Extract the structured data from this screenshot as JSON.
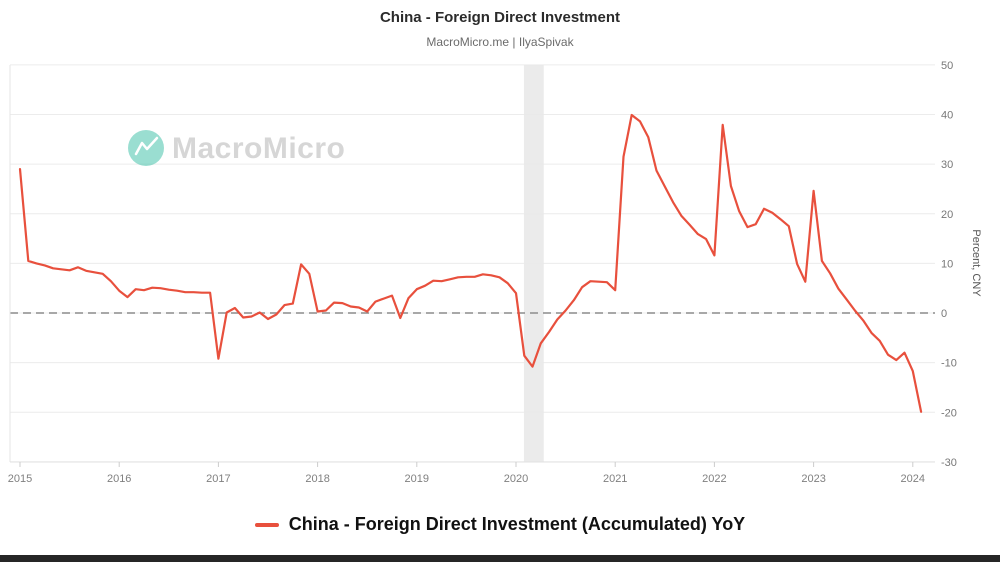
{
  "page": {
    "watermark": "MacroMicro",
    "bottom_bar_color": "#262626"
  },
  "chart_data": {
    "type": "line",
    "title": "China - Foreign Direct Investment",
    "subtitle": "MacroMicro.me | IlyaSpivak",
    "ylabel_right": "Percent, CNY",
    "ylim": [
      -30,
      50
    ],
    "yticks": [
      50,
      40,
      30,
      20,
      10,
      0,
      -10,
      -20,
      -30
    ],
    "xticks": [
      2015,
      2016,
      2017,
      2018,
      2019,
      2020,
      2021,
      2022,
      2023,
      2024
    ],
    "x_range": [
      2014.9,
      2024.22
    ],
    "grid": "horizontal",
    "zero_line": {
      "style": "dashed",
      "color": "#8c8c8c",
      "y": 0
    },
    "shaded_region": {
      "x_start": 2020.08,
      "x_end": 2020.28,
      "color": "#e9e9e9"
    },
    "legend_position": "bottom",
    "series": [
      {
        "name": "China - Foreign Direct Investment (Accumulated) YoY",
        "color": "#e8503d",
        "points": [
          [
            "2015-01",
            29.0
          ],
          [
            "2015-02",
            10.5
          ],
          [
            "2015-03",
            10.0
          ],
          [
            "2015-04",
            9.6
          ],
          [
            "2015-05",
            9.0
          ],
          [
            "2015-06",
            8.8
          ],
          [
            "2015-07",
            8.6
          ],
          [
            "2015-08",
            9.2
          ],
          [
            "2015-09",
            8.5
          ],
          [
            "2015-10",
            8.2
          ],
          [
            "2015-11",
            7.9
          ],
          [
            "2015-12",
            6.4
          ],
          [
            "2016-01",
            4.5
          ],
          [
            "2016-02",
            3.2
          ],
          [
            "2016-03",
            4.8
          ],
          [
            "2016-04",
            4.6
          ],
          [
            "2016-05",
            5.1
          ],
          [
            "2016-06",
            5.0
          ],
          [
            "2016-07",
            4.7
          ],
          [
            "2016-08",
            4.5
          ],
          [
            "2016-09",
            4.2
          ],
          [
            "2016-10",
            4.2
          ],
          [
            "2016-11",
            4.1
          ],
          [
            "2016-12",
            4.1
          ],
          [
            "2017-01",
            -9.2
          ],
          [
            "2017-02",
            0.1
          ],
          [
            "2017-03",
            1.0
          ],
          [
            "2017-04",
            -0.9
          ],
          [
            "2017-05",
            -0.7
          ],
          [
            "2017-06",
            0.1
          ],
          [
            "2017-07",
            -1.2
          ],
          [
            "2017-08",
            -0.3
          ],
          [
            "2017-09",
            1.6
          ],
          [
            "2017-10",
            1.9
          ],
          [
            "2017-11",
            9.8
          ],
          [
            "2017-12",
            7.9
          ],
          [
            "2018-01",
            0.3
          ],
          [
            "2018-02",
            0.5
          ],
          [
            "2018-03",
            2.1
          ],
          [
            "2018-04",
            2.0
          ],
          [
            "2018-05",
            1.3
          ],
          [
            "2018-06",
            1.1
          ],
          [
            "2018-07",
            0.3
          ],
          [
            "2018-08",
            2.3
          ],
          [
            "2018-09",
            2.9
          ],
          [
            "2018-10",
            3.5
          ],
          [
            "2018-11",
            -1.0
          ],
          [
            "2018-12",
            3.0
          ],
          [
            "2019-01",
            4.8
          ],
          [
            "2019-02",
            5.5
          ],
          [
            "2019-03",
            6.5
          ],
          [
            "2019-04",
            6.4
          ],
          [
            "2019-05",
            6.8
          ],
          [
            "2019-06",
            7.2
          ],
          [
            "2019-07",
            7.3
          ],
          [
            "2019-08",
            7.3
          ],
          [
            "2019-09",
            7.8
          ],
          [
            "2019-10",
            7.6
          ],
          [
            "2019-11",
            7.2
          ],
          [
            "2019-12",
            6.0
          ],
          [
            "2020-01",
            4.0
          ],
          [
            "2020-02",
            -8.6
          ],
          [
            "2020-03",
            -10.8
          ],
          [
            "2020-04",
            -6.1
          ],
          [
            "2020-05",
            -3.8
          ],
          [
            "2020-06",
            -1.3
          ],
          [
            "2020-07",
            0.5
          ],
          [
            "2020-08",
            2.6
          ],
          [
            "2020-09",
            5.2
          ],
          [
            "2020-10",
            6.4
          ],
          [
            "2020-11",
            6.3
          ],
          [
            "2020-12",
            6.2
          ],
          [
            "2021-01",
            4.6
          ],
          [
            "2021-02",
            31.5
          ],
          [
            "2021-03",
            39.9
          ],
          [
            "2021-04",
            38.6
          ],
          [
            "2021-05",
            35.4
          ],
          [
            "2021-06",
            28.7
          ],
          [
            "2021-07",
            25.5
          ],
          [
            "2021-08",
            22.3
          ],
          [
            "2021-09",
            19.6
          ],
          [
            "2021-10",
            17.8
          ],
          [
            "2021-11",
            15.9
          ],
          [
            "2021-12",
            14.9
          ],
          [
            "2022-01",
            11.6
          ],
          [
            "2022-02",
            37.9
          ],
          [
            "2022-03",
            25.6
          ],
          [
            "2022-04",
            20.5
          ],
          [
            "2022-05",
            17.3
          ],
          [
            "2022-06",
            17.9
          ],
          [
            "2022-07",
            21.0
          ],
          [
            "2022-08",
            20.2
          ],
          [
            "2022-09",
            18.9
          ],
          [
            "2022-10",
            17.5
          ],
          [
            "2022-11",
            9.9
          ],
          [
            "2022-12",
            6.3
          ],
          [
            "2023-01",
            24.6
          ],
          [
            "2023-02",
            10.5
          ],
          [
            "2023-03",
            8.0
          ],
          [
            "2023-04",
            4.9
          ],
          [
            "2023-05",
            2.7
          ],
          [
            "2023-06",
            0.5
          ],
          [
            "2023-07",
            -1.5
          ],
          [
            "2023-08",
            -4.0
          ],
          [
            "2023-09",
            -5.6
          ],
          [
            "2023-10",
            -8.4
          ],
          [
            "2023-11",
            -9.5
          ],
          [
            "2023-12",
            -8.0
          ],
          [
            "2024-01",
            -11.7
          ],
          [
            "2024-02",
            -19.9
          ]
        ]
      }
    ]
  }
}
